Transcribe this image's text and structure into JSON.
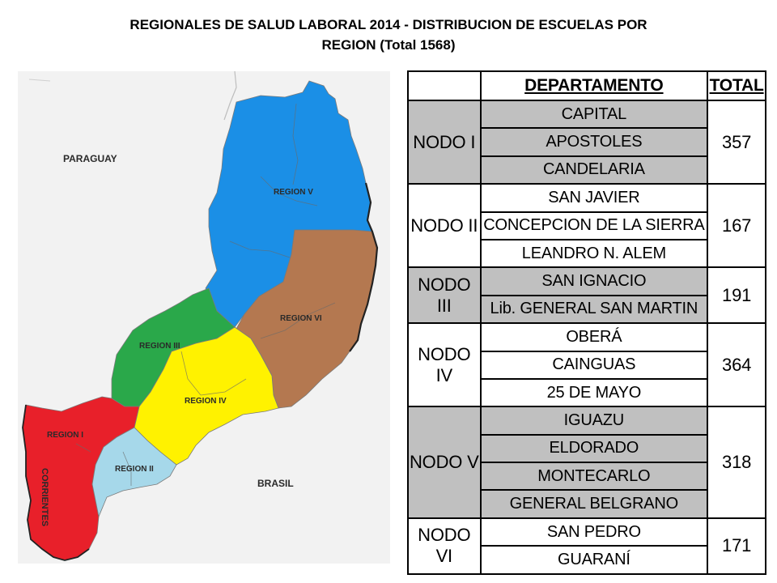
{
  "title": {
    "line1": "REGIONALES DE SALUD LABORAL 2014 - DISTRIBUCION DE ESCUELAS POR",
    "line2": "REGION (Total 1568)"
  },
  "map": {
    "labels": {
      "paraguay": "PARAGUAY",
      "brasil": "BRASIL",
      "corrientes": "CORRIENTES",
      "region1": "REGION I",
      "region2": "REGION II",
      "region3": "REGION III",
      "region4": "REGION IV",
      "region5": "REGION V",
      "region6": "REGION VI"
    },
    "colors": {
      "region1": "#e8202a",
      "region2": "#a6d8ea",
      "region3": "#2aa84a",
      "region4": "#fff200",
      "region5": "#1b8fe6",
      "region6": "#b47850",
      "background": "#f2f2f2"
    }
  },
  "table": {
    "header": {
      "departamento": "DEPARTAMENTO",
      "total": "TOTAL"
    },
    "groups": [
      {
        "nodo": "NODO I",
        "total": "357",
        "shade": "grey",
        "departments": [
          "CAPITAL",
          "APOSTOLES",
          "CANDELARIA"
        ]
      },
      {
        "nodo": "NODO II",
        "total": "167",
        "shade": "white",
        "departments": [
          "SAN JAVIER",
          "CONCEPCION DE LA SIERRA",
          "LEANDRO N. ALEM"
        ]
      },
      {
        "nodo": "NODO III",
        "total": "191",
        "shade": "grey",
        "departments": [
          "SAN IGNACIO",
          "Lib. GENERAL SAN MARTIN"
        ]
      },
      {
        "nodo": "NODO IV",
        "total": "364",
        "shade": "white",
        "departments": [
          "OBERÁ",
          "CAINGUAS",
          "25 DE MAYO"
        ]
      },
      {
        "nodo": "NODO V",
        "total": "318",
        "shade": "grey",
        "departments": [
          "IGUAZU",
          "ELDORADO",
          "MONTECARLO",
          "GENERAL BELGRANO"
        ]
      },
      {
        "nodo": "NODO VI",
        "total": "171",
        "shade": "white",
        "departments": [
          "SAN PEDRO",
          "GUARANÍ"
        ]
      }
    ]
  }
}
